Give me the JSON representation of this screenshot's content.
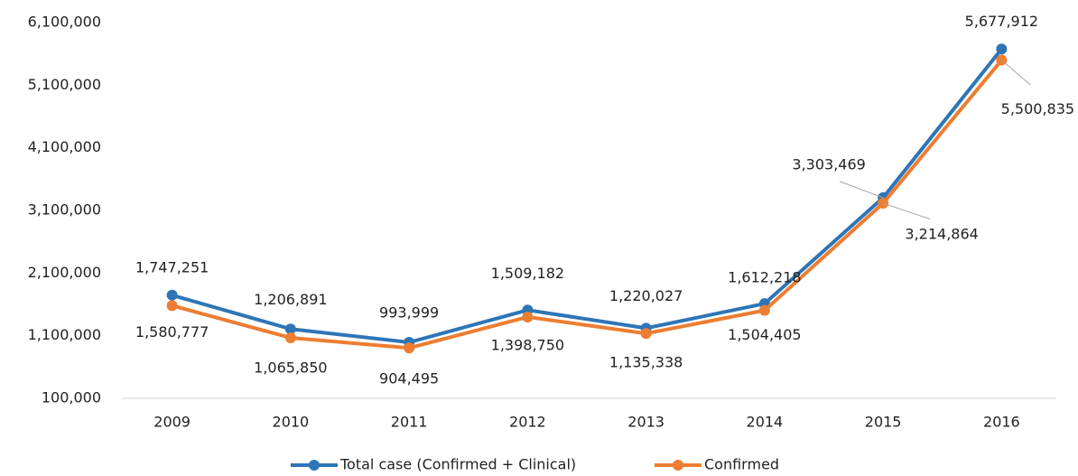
{
  "chart_data": {
    "type": "line",
    "categories": [
      "2009",
      "2010",
      "2011",
      "2012",
      "2013",
      "2014",
      "2015",
      "2016"
    ],
    "series": [
      {
        "name": "Total case (Confirmed + Clinical)",
        "color": "#2e75b6",
        "values": [
          1747251,
          1206891,
          993999,
          1509182,
          1220027,
          1612218,
          3303469,
          5677912
        ],
        "value_labels": [
          "1,747,251",
          "1,206,891",
          "993,999",
          "1,509,182",
          "1,220,027",
          "1,612,218",
          "3,303,469",
          "5,677,912"
        ]
      },
      {
        "name": "Confirmed",
        "color": "#ed7d31",
        "values": [
          1580777,
          1065850,
          904495,
          1398750,
          1135338,
          1504405,
          3214864,
          5500835
        ],
        "value_labels": [
          "1,580,777",
          "1,065,850",
          "904,495",
          "1,398,750",
          "1,135,338",
          "1,504,405",
          "3,214,864",
          "5,500,835"
        ]
      }
    ],
    "ylim": [
      100000,
      6100000
    ],
    "yticks": [
      {
        "value": 100000,
        "label": "100,000"
      },
      {
        "value": 1100000,
        "label": "1,100,000"
      },
      {
        "value": 2100000,
        "label": "2,100,000"
      },
      {
        "value": 3100000,
        "label": "3,100,000"
      },
      {
        "value": 4100000,
        "label": "4,100,000"
      },
      {
        "value": 5100000,
        "label": "5,100,000"
      },
      {
        "value": 6100000,
        "label": "6,100,000"
      }
    ],
    "grid": false,
    "legend": "bottom"
  }
}
